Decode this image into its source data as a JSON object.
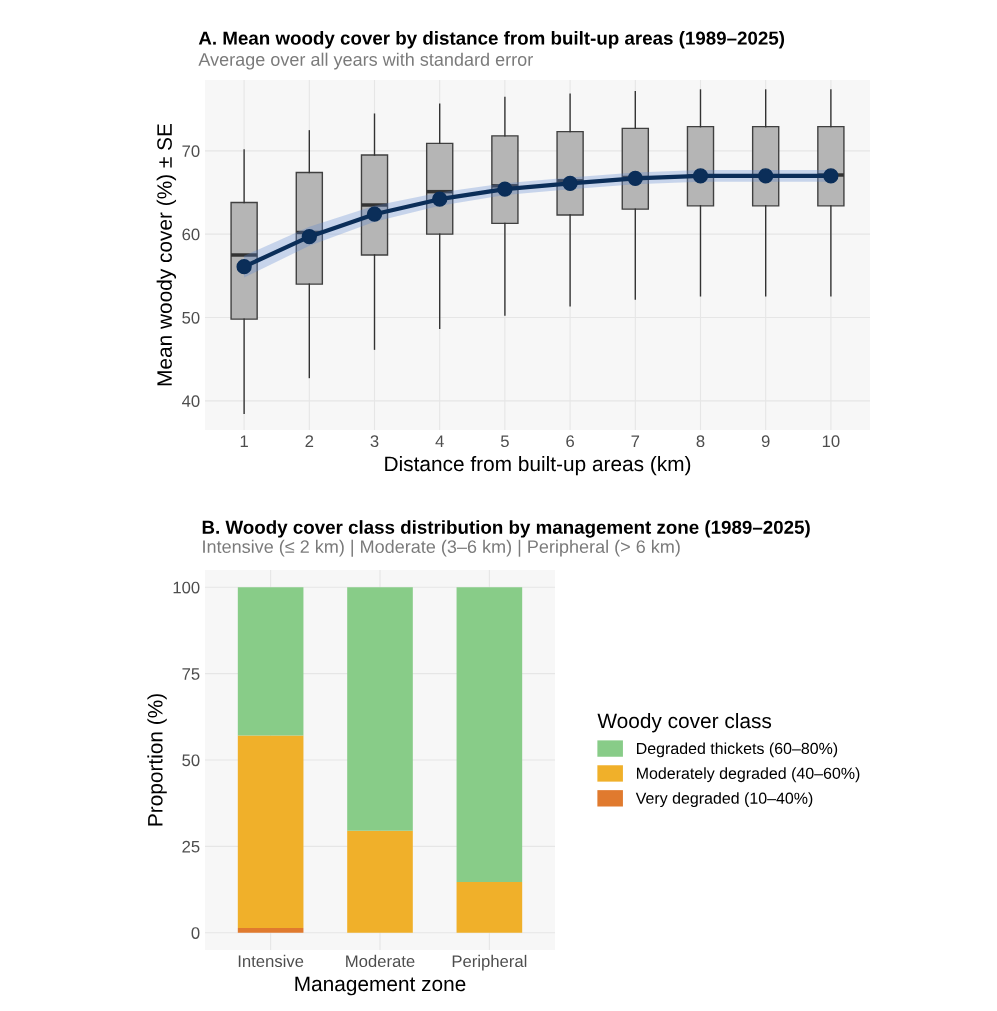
{
  "chart_data": [
    {
      "type": "box",
      "title": "A. Mean woody cover by distance from built-up areas (1989–2025)",
      "subtitle": "Average over all years with standard error",
      "xlabel": "Distance from built-up areas (km)",
      "ylabel": "Mean woody cover (%) ± SE",
      "categories": [
        "1",
        "2",
        "3",
        "4",
        "5",
        "6",
        "7",
        "8",
        "9",
        "10"
      ],
      "boxes": [
        {
          "low": 38.5,
          "q1": 49.8,
          "median": 57.5,
          "q3": 63.8,
          "high": 70.1
        },
        {
          "low": 42.8,
          "q1": 54.0,
          "median": 60.2,
          "q3": 67.4,
          "high": 72.4
        },
        {
          "low": 46.2,
          "q1": 57.5,
          "median": 63.5,
          "q3": 69.5,
          "high": 74.4
        },
        {
          "low": 48.7,
          "q1": 60.0,
          "median": 65.1,
          "q3": 70.9,
          "high": 75.6
        },
        {
          "low": 50.3,
          "q1": 61.3,
          "median": 65.8,
          "q3": 71.8,
          "high": 76.4
        },
        {
          "low": 51.4,
          "q1": 62.3,
          "median": 66.4,
          "q3": 72.3,
          "high": 76.8
        },
        {
          "low": 52.2,
          "q1": 63.0,
          "median": 66.8,
          "q3": 72.7,
          "high": 77.1
        },
        {
          "low": 52.6,
          "q1": 63.4,
          "median": 67.0,
          "q3": 72.9,
          "high": 77.3
        },
        {
          "low": 52.6,
          "q1": 63.4,
          "median": 67.0,
          "q3": 72.9,
          "high": 77.3
        },
        {
          "low": 52.6,
          "q1": 63.4,
          "median": 67.1,
          "q3": 72.9,
          "high": 77.3
        }
      ],
      "series": [
        {
          "type": "line",
          "color": "#0b2e59",
          "values": [
            56.1,
            59.7,
            62.4,
            64.2,
            65.4,
            66.1,
            66.7,
            67.0,
            67.0,
            67.0
          ],
          "lower": [
            54.8,
            58.6,
            61.5,
            63.4,
            64.7,
            65.4,
            66.0,
            66.3,
            66.3,
            66.3
          ],
          "upper": [
            57.4,
            60.9,
            63.4,
            65.0,
            66.1,
            66.8,
            67.4,
            67.7,
            67.7,
            67.7
          ]
        }
      ],
      "ylim": [
        36.5,
        78.5
      ],
      "yticks": [
        40,
        50,
        60,
        70
      ],
      "grid": true,
      "marker": "circle",
      "line_style": "solid"
    },
    {
      "type": "bar",
      "stacked": true,
      "title": "B. Woody cover class distribution by management zone (1989–2025)",
      "subtitle": "Intensive (≤ 2 km) | Moderate (3–6 km) | Peripheral (> 6 km)",
      "xlabel": "Management zone",
      "ylabel": "Proportion (%)",
      "legend_title": "Woody cover class",
      "categories": [
        "Intensive",
        "Moderate",
        "Peripheral"
      ],
      "series": [
        {
          "name": "Very degraded (10–40%)",
          "color": "#e07a2e",
          "values": [
            1.4,
            0,
            0
          ]
        },
        {
          "name": "Moderately degraded (40–60%)",
          "color": "#f0b02a",
          "values": [
            55.7,
            29.5,
            14.7
          ]
        },
        {
          "name": "Degraded thickets (60–80%)",
          "color": "#88cc88",
          "values": [
            42.9,
            70.5,
            85.3
          ]
        }
      ],
      "ylim": [
        -5,
        105
      ],
      "yticks": [
        0,
        25,
        50,
        75,
        100
      ],
      "grid": true,
      "legend": "right"
    }
  ]
}
